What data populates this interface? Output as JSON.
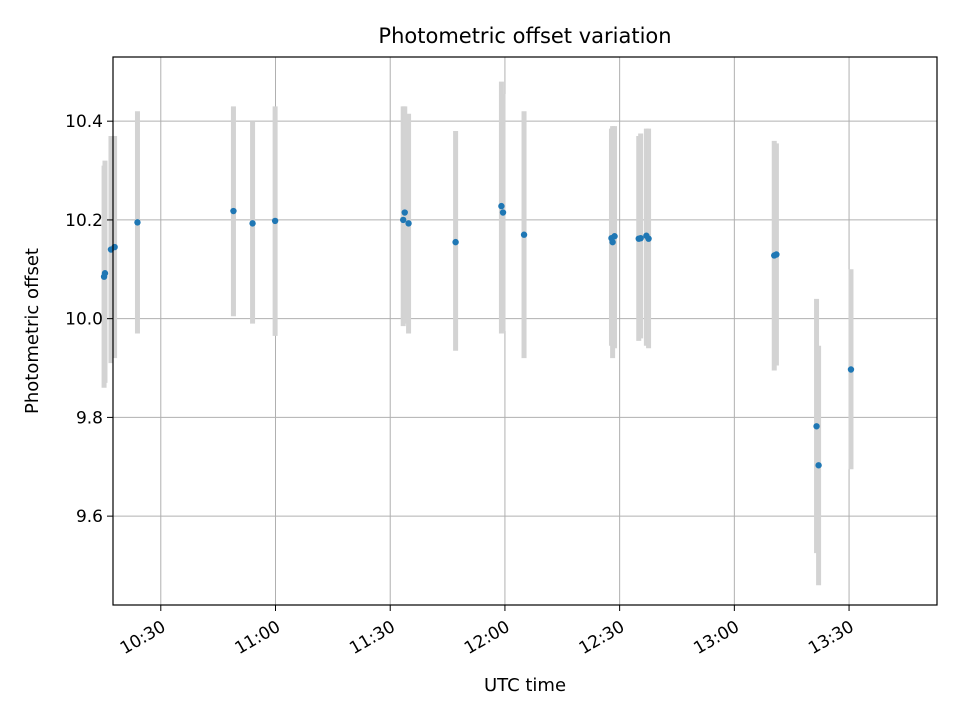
{
  "chart_data": {
    "type": "scatter",
    "title": "Photometric offset variation",
    "xlabel": "UTC time",
    "ylabel": "Photometric offset",
    "x_axis": {
      "kind": "time",
      "range": [
        "10:17:30",
        "13:53:00"
      ],
      "ticks": [
        "10:30",
        "11:00",
        "11:30",
        "12:00",
        "12:30",
        "13:00",
        "13:30"
      ]
    },
    "y_axis": {
      "range": [
        9.42,
        10.53
      ],
      "ticks": [
        9.6,
        9.8,
        10.0,
        10.2,
        10.4
      ],
      "tick_labels": [
        "9.6",
        "9.8",
        "10.0",
        "10.2",
        "10.4"
      ]
    },
    "grid": true,
    "colors": {
      "points": "#1f77b4",
      "error_bars": "#d3d3d3"
    },
    "series": [
      {
        "points": [
          {
            "t": "10:15:10",
            "y": 10.085,
            "ylo": 9.86,
            "yhi": 10.31
          },
          {
            "t": "10:15:24",
            "y": 10.092,
            "ylo": 9.87,
            "yhi": 10.32
          },
          {
            "t": "10:16:58",
            "y": 10.14,
            "ylo": 9.91,
            "yhi": 10.37
          },
          {
            "t": "10:17:55",
            "y": 10.145,
            "ylo": 9.92,
            "yhi": 10.37
          },
          {
            "t": "10:23:54",
            "y": 10.195,
            "ylo": 9.97,
            "yhi": 10.42
          },
          {
            "t": "10:49:00",
            "y": 10.218,
            "ylo": 10.005,
            "yhi": 10.43
          },
          {
            "t": "10:54:00",
            "y": 10.193,
            "ylo": 9.99,
            "yhi": 10.4
          },
          {
            "t": "10:59:54",
            "y": 10.198,
            "ylo": 9.965,
            "yhi": 10.43
          },
          {
            "t": "11:33:24",
            "y": 10.2,
            "ylo": 9.985,
            "yhi": 10.43
          },
          {
            "t": "11:33:48",
            "y": 10.215,
            "ylo": 9.99,
            "yhi": 10.43
          },
          {
            "t": "11:34:48",
            "y": 10.193,
            "ylo": 9.97,
            "yhi": 10.415
          },
          {
            "t": "11:47:06",
            "y": 10.155,
            "ylo": 9.935,
            "yhi": 10.38
          },
          {
            "t": "11:59:05",
            "y": 10.228,
            "ylo": 9.97,
            "yhi": 10.48
          },
          {
            "t": "11:59:30",
            "y": 10.215,
            "ylo": 9.975,
            "yhi": 10.455
          },
          {
            "t": "12:05:00",
            "y": 10.17,
            "ylo": 9.92,
            "yhi": 10.42
          },
          {
            "t": "12:27:52",
            "y": 10.163,
            "ylo": 9.945,
            "yhi": 10.385
          },
          {
            "t": "12:28:10",
            "y": 10.155,
            "ylo": 9.92,
            "yhi": 10.39
          },
          {
            "t": "12:28:40",
            "y": 10.167,
            "ylo": 9.94,
            "yhi": 10.39
          },
          {
            "t": "12:35:00",
            "y": 10.162,
            "ylo": 9.955,
            "yhi": 10.37
          },
          {
            "t": "12:35:30",
            "y": 10.163,
            "ylo": 9.96,
            "yhi": 10.375
          },
          {
            "t": "12:37:00",
            "y": 10.168,
            "ylo": 9.945,
            "yhi": 10.385
          },
          {
            "t": "12:37:34",
            "y": 10.162,
            "ylo": 9.94,
            "yhi": 10.385
          },
          {
            "t": "13:10:26",
            "y": 10.128,
            "ylo": 9.895,
            "yhi": 10.36
          },
          {
            "t": "13:11:00",
            "y": 10.13,
            "ylo": 9.905,
            "yhi": 10.355
          },
          {
            "t": "13:21:30",
            "y": 9.782,
            "ylo": 9.525,
            "yhi": 10.04
          },
          {
            "t": "13:22:02",
            "y": 9.703,
            "ylo": 9.46,
            "yhi": 9.945
          },
          {
            "t": "13:30:30",
            "y": 9.897,
            "ylo": 9.695,
            "yhi": 10.1
          }
        ]
      }
    ]
  }
}
